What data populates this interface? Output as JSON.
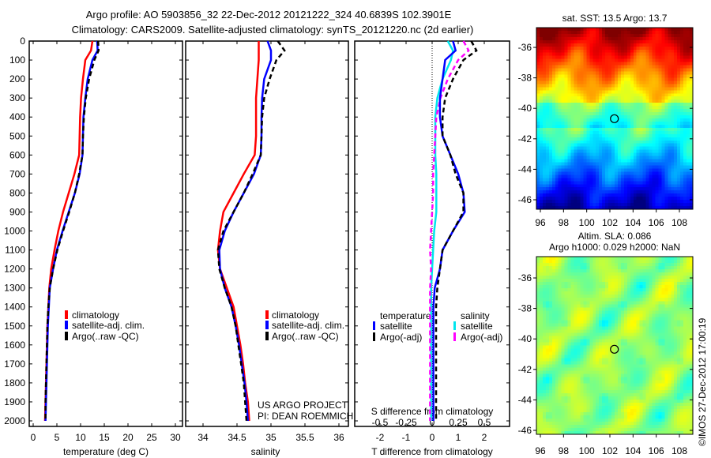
{
  "title": {
    "line1": "Argo profile: AO 5903856_32 22-Dec-2012 20121222_324 40.6839S 102.3901E",
    "line2": "Climatology: CARS2009. Satellite-adjusted climatology: synTS_20121220.nc (2d earlier)"
  },
  "credit": {
    "line1": "US ARGO PROJECT",
    "line2": "PI: DEAN ROEMMICH"
  },
  "timestamp": "©IMOS 27-Dec-2012 17:00:19",
  "colors": {
    "climatology": "#ff0000",
    "satellite": "#0000ff",
    "argo": "#000000",
    "sal_satellite": "#00e5ee",
    "sal_argo": "#ff00ff"
  },
  "chart_data": [
    {
      "type": "line",
      "xlabel": "temperature (deg C)",
      "ylabel": "",
      "xlim": [
        -1,
        31
      ],
      "ylim": [
        2050,
        0
      ],
      "xticks": [
        "0",
        "5",
        "10",
        "15",
        "20",
        "25",
        "30"
      ],
      "yticks": [
        "0",
        "100",
        "200",
        "300",
        "400",
        "500",
        "600",
        "700",
        "800",
        "900",
        "1000",
        "1100",
        "1200",
        "1300",
        "1400",
        "1500",
        "1600",
        "1700",
        "1800",
        "1900",
        "2000"
      ],
      "legend": [
        "climatology",
        "satellite-adj. clim.",
        "Argo(..raw -QC)"
      ],
      "depth": [
        0,
        50,
        100,
        200,
        300,
        400,
        500,
        600,
        700,
        800,
        900,
        1000,
        1100,
        1200,
        1300,
        1400,
        1500,
        1600,
        1700,
        1800,
        1900,
        2000
      ],
      "series": [
        {
          "name": "climatology",
          "values": [
            12.5,
            12.2,
            11.0,
            10.5,
            10.1,
            9.9,
            9.8,
            9.7,
            8.7,
            7.5,
            6.3,
            5.3,
            4.5,
            3.8,
            3.4,
            3.2,
            3.0,
            2.9,
            2.8,
            2.7,
            2.6,
            2.5
          ]
        },
        {
          "name": "satellite-adj. clim.",
          "values": [
            13.5,
            13.6,
            12.5,
            11.5,
            11.0,
            10.6,
            10.5,
            10.4,
            9.8,
            8.8,
            7.5,
            6.2,
            5.0,
            4.2,
            3.5,
            3.3,
            3.1,
            3.0,
            2.9,
            2.8,
            2.7,
            2.6
          ]
        },
        {
          "name": "Argo(..raw -QC)",
          "values": [
            13.7,
            13.8,
            12.9,
            11.8,
            11.1,
            10.7,
            10.5,
            10.4,
            9.7,
            8.8,
            7.6,
            6.3,
            5.1,
            4.2,
            3.5,
            3.2,
            3.0,
            2.9,
            2.8,
            2.7,
            2.6,
            2.6
          ]
        }
      ]
    },
    {
      "type": "line",
      "xlabel": "salinity",
      "xlim": [
        33.9,
        36.1
      ],
      "ylim": [
        2050,
        0
      ],
      "xticks": [
        "34",
        "34.5",
        "35",
        "35.5",
        "36"
      ],
      "legend": [
        "climatology",
        "satellite-adj. clim.",
        "Argo(..raw -QC)"
      ],
      "depth": [
        0,
        50,
        100,
        200,
        300,
        400,
        500,
        600,
        700,
        800,
        900,
        1000,
        1100,
        1200,
        1300,
        1400,
        1500,
        1600,
        1700,
        1800,
        1900,
        2000
      ],
      "series": [
        {
          "name": "climatology",
          "values": [
            34.82,
            34.82,
            34.82,
            34.8,
            34.78,
            34.78,
            34.78,
            34.76,
            34.6,
            34.45,
            34.3,
            34.25,
            34.22,
            34.25,
            34.35,
            34.45,
            34.5,
            34.55,
            34.59,
            34.62,
            34.66,
            34.68
          ]
        },
        {
          "name": "satellite-adj. clim.",
          "values": [
            34.95,
            35.0,
            35.0,
            34.9,
            34.87,
            34.86,
            34.86,
            34.85,
            34.75,
            34.6,
            34.45,
            34.32,
            34.24,
            34.25,
            34.32,
            34.42,
            34.48,
            34.53,
            34.57,
            34.61,
            34.64,
            34.66
          ]
        },
        {
          "name": "Argo(..raw -QC)",
          "values": [
            35.1,
            35.2,
            35.08,
            34.98,
            34.9,
            34.87,
            34.86,
            34.85,
            34.73,
            34.6,
            34.45,
            34.3,
            34.22,
            34.24,
            34.32,
            34.42,
            34.48,
            34.52,
            34.56,
            34.6,
            34.62,
            34.64
          ]
        }
      ]
    },
    {
      "type": "line",
      "xlabel": "T difference from climatology",
      "x2label": "S difference from climatology",
      "xlim": [
        -3,
        3
      ],
      "x2lim": [
        -0.75,
        0.75
      ],
      "ylim": [
        2050,
        0
      ],
      "xticks": [
        "-2",
        "-1",
        "0",
        "1",
        "2"
      ],
      "x2ticks": [
        "-0.5",
        "-0.25",
        "0",
        "0.25",
        "0.5"
      ],
      "legend_titles": [
        "temperature",
        "salinity"
      ],
      "legend": [
        "satellite",
        "Argo(-adj)",
        "satellite",
        "Argo(-adj)"
      ],
      "depth": [
        0,
        50,
        100,
        200,
        300,
        400,
        500,
        600,
        700,
        800,
        900,
        1000,
        1100,
        1200,
        1300,
        1400,
        1500,
        1600,
        1700,
        1800,
        1900,
        2000
      ],
      "series": [
        {
          "name": "T satellite",
          "values": [
            0.8,
            0.9,
            0.5,
            0.4,
            0.3,
            0.3,
            0.4,
            0.7,
            1.0,
            1.2,
            1.25,
            0.8,
            0.4,
            0.3,
            0.1,
            0.05,
            0.05,
            0.05,
            0.05,
            0.05,
            0.05,
            0.05
          ]
        },
        {
          "name": "T Argo(-adj)",
          "values": [
            1.5,
            1.7,
            1.2,
            0.8,
            0.5,
            0.4,
            0.4,
            0.7,
            0.9,
            1.2,
            1.2,
            0.8,
            0.4,
            0.3,
            0.2,
            0.15,
            0.15,
            0.15,
            0.15,
            0.15,
            0.15,
            0.15
          ]
        },
        {
          "name": "S satellite",
          "values": [
            0.15,
            0.2,
            0.18,
            0.1,
            0.05,
            0.03,
            0.03,
            0.03,
            0.04,
            0.04,
            0.04,
            0.02,
            0.01,
            0.0,
            -0.01,
            -0.01,
            -0.01,
            -0.01,
            -0.01,
            -0.01,
            -0.01,
            -0.01
          ]
        },
        {
          "name": "S Argo(-adj)",
          "values": [
            0.3,
            0.35,
            0.25,
            0.15,
            0.08,
            0.04,
            0.03,
            0.02,
            0.01,
            0.01,
            0.0,
            -0.01,
            -0.02,
            -0.01,
            -0.02,
            -0.02,
            -0.02,
            -0.02,
            -0.02,
            -0.02,
            -0.02,
            -0.02
          ]
        }
      ]
    },
    {
      "type": "heatmap",
      "title": "sat. SST: 13.5 Argo: 13.7",
      "xticks": [
        "96",
        "98",
        "100",
        "102",
        "104",
        "106",
        "108"
      ],
      "yticks": [
        "-36",
        "-38",
        "-40",
        "-42",
        "-44",
        "-46"
      ],
      "marker": {
        "lon": 102.39,
        "lat": -40.68
      }
    },
    {
      "type": "heatmap",
      "title1": "Altim. SLA: 0.086",
      "title2": "Argo h1000: 0.029 h2000: NaN",
      "xticks": [
        "96",
        "98",
        "100",
        "102",
        "104",
        "106",
        "108"
      ],
      "yticks": [
        "-36",
        "-38",
        "-40",
        "-42",
        "-44",
        "-46"
      ],
      "marker": {
        "lon": 102.39,
        "lat": -40.68
      }
    }
  ]
}
